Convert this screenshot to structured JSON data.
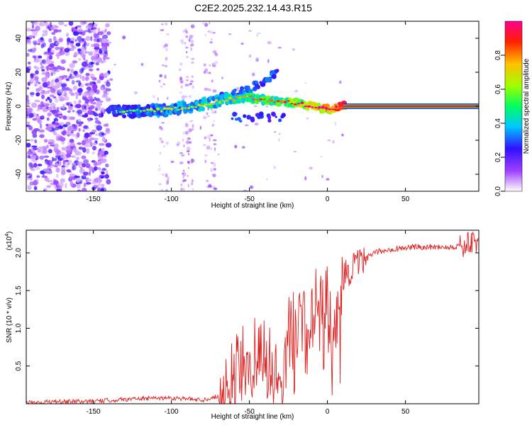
{
  "title": "C2E2.2025.232.14.43.R15",
  "chart_data": [
    {
      "type": "heatmap",
      "xlabel": "Height of straight line (km)",
      "ylabel": "Frequency (Hz)",
      "xlim": [
        -193,
        97
      ],
      "ylim": [
        -50,
        50
      ],
      "xticks": [
        -150,
        -100,
        -50,
        0,
        50
      ],
      "yticks": [
        -40,
        -20,
        0,
        20,
        40
      ],
      "colorbar": {
        "label": "Normalized spectral amplitude",
        "range": [
          0,
          1
        ],
        "ticks": [
          0.0,
          0.2,
          0.4,
          0.6,
          0.8
        ]
      },
      "noise_region_x": [
        -193,
        -140
      ],
      "ridge": [
        {
          "x": -140,
          "y": -3,
          "amp": 0.3
        },
        {
          "x": -120,
          "y": -3,
          "amp": 0.35
        },
        {
          "x": -100,
          "y": -2,
          "amp": 0.4
        },
        {
          "x": -80,
          "y": 1,
          "amp": 0.45
        },
        {
          "x": -65,
          "y": 4,
          "amp": 0.5
        },
        {
          "x": -50,
          "y": 5,
          "amp": 0.55
        },
        {
          "x": -35,
          "y": 3,
          "amp": 0.6
        },
        {
          "x": -20,
          "y": 2,
          "amp": 0.7
        },
        {
          "x": -10,
          "y": 0,
          "amp": 0.8
        },
        {
          "x": 0,
          "y": -2,
          "amp": 0.85
        },
        {
          "x": 10,
          "y": 0,
          "amp": 0.95
        },
        {
          "x": 97,
          "y": 0,
          "amp": 1.0
        }
      ],
      "branch": [
        {
          "x": -70,
          "y": 5
        },
        {
          "x": -50,
          "y": 10
        },
        {
          "x": -32,
          "y": 20
        }
      ]
    },
    {
      "type": "line",
      "xlabel": "Height of straight line (km)",
      "ylabel": "SNR (10 * v/v)",
      "scale_label": "(x10",
      "scale_exponent": "4",
      "xlim": [
        -193,
        97
      ],
      "ylim": [
        0,
        2.3
      ],
      "xticks": [
        -150,
        -100,
        -50,
        0,
        50
      ],
      "yticks": [
        0.5,
        1.0,
        1.5,
        2.0
      ],
      "series": [
        {
          "name": "SNR",
          "color": "#e02020",
          "x": [
            -193,
            -150,
            -130,
            -100,
            -80,
            -70,
            -60,
            -50,
            -40,
            -30,
            -25,
            -20,
            -10,
            0,
            5,
            10,
            20,
            30,
            40,
            50,
            60,
            70,
            80,
            90,
            97
          ],
          "y": [
            0.02,
            0.03,
            0.06,
            0.08,
            0.05,
            0.1,
            0.35,
            0.6,
            0.65,
            0.3,
            0.9,
            1.0,
            1.25,
            1.35,
            0.8,
            1.7,
            1.85,
            2.0,
            2.05,
            2.07,
            2.08,
            2.08,
            2.08,
            2.1,
            2.15
          ]
        }
      ]
    }
  ]
}
